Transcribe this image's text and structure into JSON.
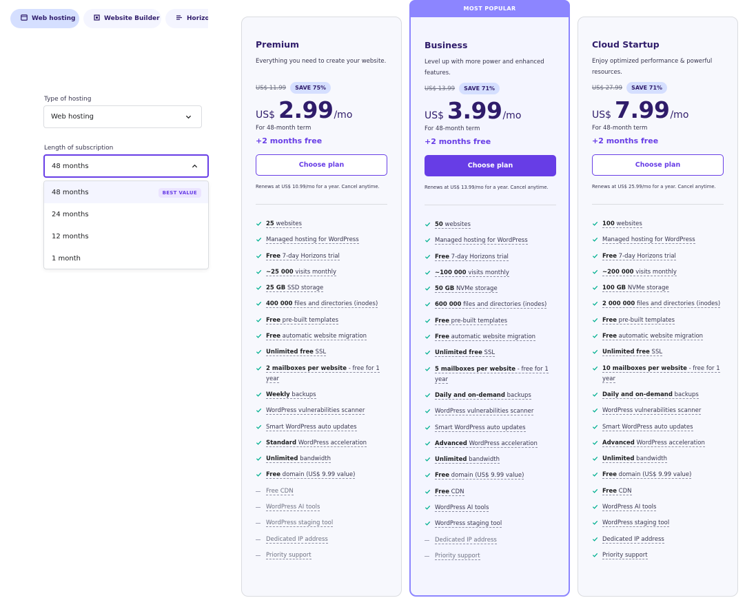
{
  "tabs": [
    {
      "label": "Web hosting",
      "icon": "hosting-icon",
      "active": true
    },
    {
      "label": "Website Builder",
      "icon": "builder-icon",
      "active": false
    },
    {
      "label": "Horizons",
      "icon": "horizons-icon",
      "active": false
    }
  ],
  "filters": {
    "hosting_type_label": "Type of hosting",
    "hosting_type_value": "Web hosting",
    "subscription_label": "Length of subscription",
    "subscription_value": "48 months",
    "options": [
      "48 months",
      "24 months",
      "12 months",
      "1 month"
    ],
    "best_value_badge": "BEST VALUE"
  },
  "plans": [
    {
      "name": "Premium",
      "description": "Everything you need to create your website.",
      "old_price": "US$ 11.99",
      "save": "SAVE 75%",
      "currency": "US$",
      "price": "2.99",
      "period": "/mo",
      "term": "For 48-month term",
      "bonus": "+2 months free",
      "button": "Choose plan",
      "renews": "Renews at US$ 10.99/mo for a year. Cancel anytime.",
      "features": [
        {
          "b": "25",
          "t": " websites"
        },
        {
          "t": "Managed hosting for WordPress"
        },
        {
          "b": "Free",
          "t": " 7-day Horizons trial"
        },
        {
          "b": "~25 000",
          "t": " visits monthly"
        },
        {
          "b": "25 GB",
          "t": " SSD storage"
        },
        {
          "b": "400 000",
          "t": " files and directories (inodes)"
        },
        {
          "b": "Free",
          "t": " pre-built templates"
        },
        {
          "b": "Free",
          "t": " automatic website migration"
        },
        {
          "b": "Unlimited free",
          "t": " SSL"
        },
        {
          "b": "2 mailboxes per website",
          "t": " - free for 1 year"
        },
        {
          "b": "Weekly",
          "t": " backups"
        },
        {
          "t": "WordPress vulnerabilities scanner"
        },
        {
          "t": "Smart WordPress auto updates"
        },
        {
          "b": "Standard",
          "t": " WordPress acceleration"
        },
        {
          "b": "Unlimited",
          "t": " bandwidth"
        },
        {
          "b": "Free",
          "t": " domain (US$ 9.99 value)"
        },
        {
          "t": "Free CDN",
          "off": true
        },
        {
          "t": "WordPress AI tools",
          "off": true
        },
        {
          "t": "WordPress staging tool",
          "off": true
        },
        {
          "t": "Dedicated IP address",
          "off": true
        },
        {
          "t": "Priority support",
          "off": true
        }
      ]
    },
    {
      "name": "Business",
      "badge": "MOST POPULAR",
      "description": "Level up with more power and enhanced features.",
      "old_price": "US$ 13.99",
      "save": "SAVE 71%",
      "currency": "US$",
      "price": "3.99",
      "period": "/mo",
      "term": "For 48-month term",
      "bonus": "+2 months free",
      "button": "Choose plan",
      "renews": "Renews at US$ 13.99/mo for a year. Cancel anytime.",
      "features": [
        {
          "b": "50",
          "t": " websites"
        },
        {
          "t": "Managed hosting for WordPress"
        },
        {
          "b": "Free",
          "t": " 7-day Horizons trial"
        },
        {
          "b": "~100 000",
          "t": " visits monthly"
        },
        {
          "b": "50 GB",
          "t": " NVMe storage"
        },
        {
          "b": "600 000",
          "t": " files and directories (inodes)"
        },
        {
          "b": "Free",
          "t": " pre-built templates"
        },
        {
          "b": "Free",
          "t": " automatic website migration"
        },
        {
          "b": "Unlimited free",
          "t": " SSL"
        },
        {
          "b": "5 mailboxes per website",
          "t": " - free for 1 year"
        },
        {
          "b": "Daily and on-demand",
          "t": " backups"
        },
        {
          "t": "WordPress vulnerabilities scanner"
        },
        {
          "t": "Smart WordPress auto updates"
        },
        {
          "b": "Advanced",
          "t": " WordPress acceleration"
        },
        {
          "b": "Unlimited",
          "t": " bandwidth"
        },
        {
          "b": "Free",
          "t": " domain (US$ 9.99 value)"
        },
        {
          "b": "Free",
          "t": " CDN"
        },
        {
          "t": "WordPress AI tools"
        },
        {
          "t": "WordPress staging tool"
        },
        {
          "t": "Dedicated IP address",
          "off": true
        },
        {
          "t": "Priority support",
          "off": true
        }
      ]
    },
    {
      "name": "Cloud Startup",
      "description": "Enjoy optimized performance & powerful resources.",
      "old_price": "US$ 27.99",
      "save": "SAVE 71%",
      "currency": "US$",
      "price": "7.99",
      "period": "/mo",
      "term": "For 48-month term",
      "bonus": "+2 months free",
      "button": "Choose plan",
      "renews": "Renews at US$ 25.99/mo for a year. Cancel anytime.",
      "features": [
        {
          "b": "100",
          "t": " websites"
        },
        {
          "t": "Managed hosting for WordPress"
        },
        {
          "b": "Free",
          "t": " 7-day Horizons trial"
        },
        {
          "b": "~200 000",
          "t": " visits monthly"
        },
        {
          "b": "100 GB",
          "t": " NVMe storage"
        },
        {
          "b": "2 000 000",
          "t": " files and directories (inodes)"
        },
        {
          "b": "Free",
          "t": " pre-built templates"
        },
        {
          "b": "Free",
          "t": " automatic website migration"
        },
        {
          "b": "Unlimited free",
          "t": " SSL"
        },
        {
          "b": "10 mailboxes per website",
          "t": " - free for 1 year"
        },
        {
          "b": "Daily and on-demand",
          "t": " backups"
        },
        {
          "t": "WordPress vulnerabilities scanner"
        },
        {
          "t": "Smart WordPress auto updates"
        },
        {
          "b": "Advanced",
          "t": " WordPress acceleration"
        },
        {
          "b": "Unlimited",
          "t": " bandwidth"
        },
        {
          "b": "Free",
          "t": " domain (US$ 9.99 value)"
        },
        {
          "b": "Free",
          "t": " CDN"
        },
        {
          "t": "WordPress AI tools"
        },
        {
          "t": "WordPress staging tool"
        },
        {
          "t": "Dedicated IP address"
        },
        {
          "t": "Priority support"
        }
      ]
    }
  ],
  "colors": {
    "accent": "#673de6",
    "text_dark": "#2f1c6a",
    "check": "#00b090",
    "popular_border": "#8c85ff"
  }
}
